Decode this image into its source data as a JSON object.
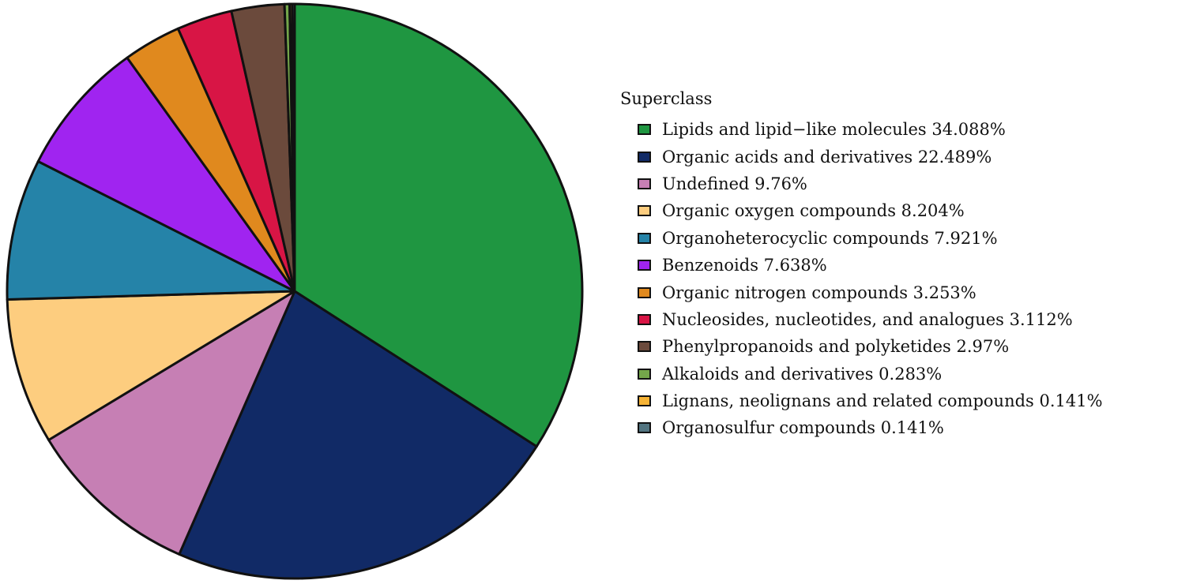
{
  "chart_data": {
    "type": "pie",
    "legend_title": "Superclass",
    "legend_position": "right",
    "slices": [
      {
        "label": "Lipids and lipid−like molecules 34.088%",
        "category": "Lipids and lipid−like molecules",
        "value": 34.088,
        "color": "#1f9641"
      },
      {
        "label": "Organic acids and derivatives 22.489%",
        "category": "Organic acids and derivatives",
        "value": 22.489,
        "color": "#112a66"
      },
      {
        "label": "Undefined 9.76%",
        "category": "Undefined",
        "value": 9.76,
        "color": "#c67fb4"
      },
      {
        "label": "Organic oxygen compounds 8.204%",
        "category": "Organic oxygen compounds",
        "value": 8.204,
        "color": "#fdcd7f"
      },
      {
        "label": "Organoheterocyclic compounds 7.921%",
        "category": "Organoheterocyclic compounds",
        "value": 7.921,
        "color": "#2583a8"
      },
      {
        "label": "Benzenoids 7.638%",
        "category": "Benzenoids",
        "value": 7.638,
        "color": "#a024f0"
      },
      {
        "label": "Organic nitrogen compounds 3.253%",
        "category": "Organic nitrogen compounds",
        "value": 3.253,
        "color": "#e0891e"
      },
      {
        "label": "Nucleosides, nucleotides, and analogues 3.112%",
        "category": "Nucleosides, nucleotides, and analogues",
        "value": 3.112,
        "color": "#d81545"
      },
      {
        "label": "Phenylpropanoids and polyketides 2.97%",
        "category": "Phenylpropanoids and polyketides",
        "value": 2.97,
        "color": "#6b4a3c"
      },
      {
        "label": "Alkaloids and derivatives 0.283%",
        "category": "Alkaloids and derivatives",
        "value": 0.283,
        "color": "#74a64a"
      },
      {
        "label": "Lignans, neolignans and related compounds 0.141%",
        "category": "Lignans, neolignans and related compounds",
        "value": 0.141,
        "color": "#f6b335"
      },
      {
        "label": "Organosulfur compounds 0.141%",
        "category": "Organosulfur compounds",
        "value": 0.141,
        "color": "#527480"
      }
    ]
  }
}
